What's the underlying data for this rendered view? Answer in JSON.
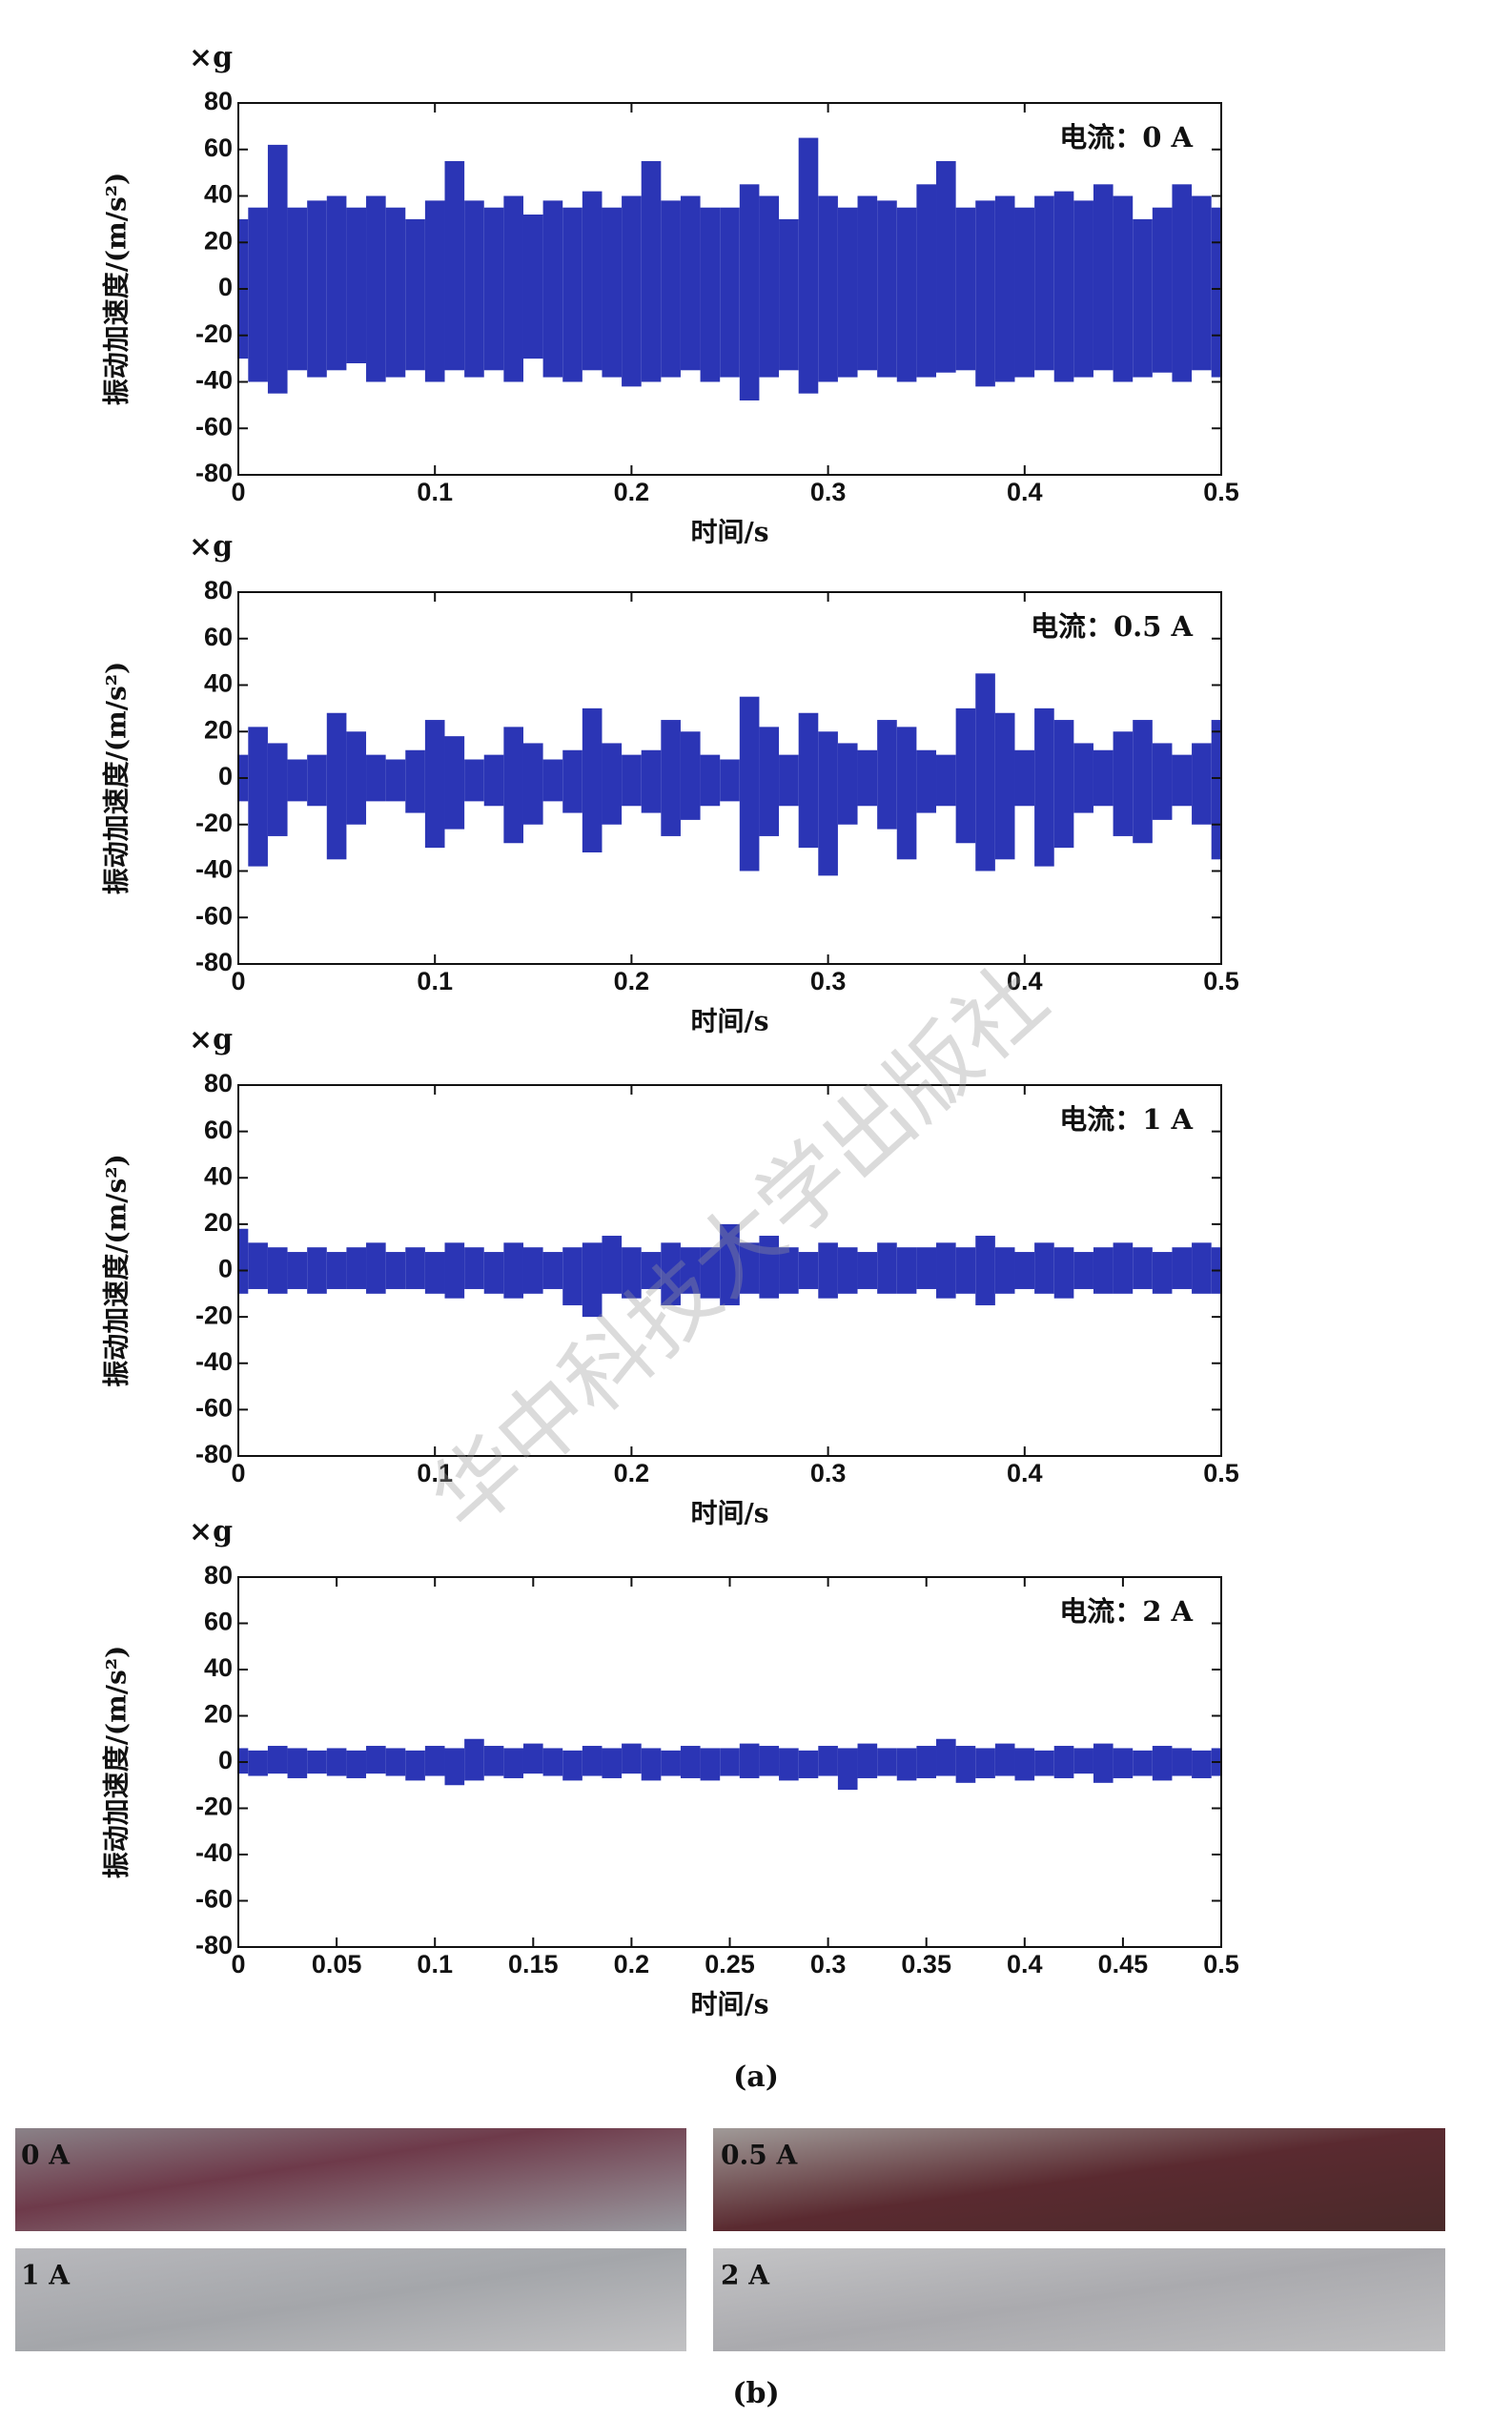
{
  "chart_data": [
    {
      "type": "signal",
      "unit_label": "×g",
      "ylabel": "振动加速度/(m/s²)",
      "xlabel": "时间/s",
      "annotation": "电流：0 A",
      "color": "#2b35b5",
      "xlim": [
        0,
        0.5
      ],
      "ylim": [
        -80,
        80
      ],
      "xticks": [
        0,
        0.1,
        0.2,
        0.3,
        0.4,
        0.5
      ],
      "yticks": [
        80,
        60,
        40,
        20,
        0,
        -20,
        -40,
        -60,
        -80
      ],
      "x": [
        0,
        0.01,
        0.02,
        0.03,
        0.04,
        0.05,
        0.06,
        0.07,
        0.08,
        0.09,
        0.1,
        0.11,
        0.12,
        0.13,
        0.14,
        0.15,
        0.16,
        0.17,
        0.18,
        0.19,
        0.2,
        0.21,
        0.22,
        0.23,
        0.24,
        0.25,
        0.26,
        0.27,
        0.28,
        0.29,
        0.3,
        0.31,
        0.32,
        0.33,
        0.34,
        0.35,
        0.36,
        0.37,
        0.38,
        0.39,
        0.4,
        0.41,
        0.42,
        0.43,
        0.44,
        0.45,
        0.46,
        0.47,
        0.48,
        0.49,
        0.5
      ],
      "upper": [
        30,
        35,
        62,
        35,
        38,
        40,
        35,
        40,
        35,
        30,
        38,
        55,
        38,
        35,
        40,
        32,
        38,
        35,
        42,
        35,
        40,
        55,
        38,
        40,
        35,
        35,
        45,
        40,
        30,
        65,
        40,
        35,
        40,
        38,
        35,
        45,
        55,
        35,
        38,
        40,
        35,
        40,
        42,
        38,
        45,
        40,
        30,
        35,
        45,
        40,
        35
      ],
      "lower": [
        -30,
        -40,
        -45,
        -35,
        -38,
        -35,
        -32,
        -40,
        -38,
        -35,
        -40,
        -35,
        -38,
        -35,
        -40,
        -30,
        -38,
        -40,
        -35,
        -38,
        -42,
        -40,
        -38,
        -35,
        -40,
        -38,
        -48,
        -38,
        -35,
        -45,
        -40,
        -38,
        -35,
        -38,
        -40,
        -38,
        -36,
        -35,
        -42,
        -40,
        -38,
        -35,
        -40,
        -38,
        -35,
        -40,
        -38,
        -36,
        -40,
        -35,
        -38
      ]
    },
    {
      "type": "signal",
      "unit_label": "×g",
      "ylabel": "振动加速度/(m/s²)",
      "xlabel": "时间/s",
      "annotation": "电流：0.5 A",
      "color": "#2b35b5",
      "xlim": [
        0,
        0.5
      ],
      "ylim": [
        -80,
        80
      ],
      "xticks": [
        0,
        0.1,
        0.2,
        0.3,
        0.4,
        0.5
      ],
      "yticks": [
        80,
        60,
        40,
        20,
        0,
        -20,
        -40,
        -60,
        -80
      ],
      "x": [
        0,
        0.01,
        0.02,
        0.03,
        0.04,
        0.05,
        0.06,
        0.07,
        0.08,
        0.09,
        0.1,
        0.11,
        0.12,
        0.13,
        0.14,
        0.15,
        0.16,
        0.17,
        0.18,
        0.19,
        0.2,
        0.21,
        0.22,
        0.23,
        0.24,
        0.25,
        0.26,
        0.27,
        0.28,
        0.29,
        0.3,
        0.31,
        0.32,
        0.33,
        0.34,
        0.35,
        0.36,
        0.37,
        0.38,
        0.39,
        0.4,
        0.41,
        0.42,
        0.43,
        0.44,
        0.45,
        0.46,
        0.47,
        0.48,
        0.49,
        0.5
      ],
      "upper": [
        10,
        22,
        15,
        8,
        10,
        28,
        20,
        10,
        8,
        12,
        25,
        18,
        8,
        10,
        22,
        15,
        8,
        12,
        30,
        15,
        10,
        12,
        25,
        20,
        10,
        8,
        35,
        22,
        10,
        28,
        20,
        15,
        12,
        25,
        22,
        12,
        10,
        30,
        45,
        28,
        12,
        30,
        25,
        15,
        12,
        20,
        25,
        15,
        10,
        15,
        25
      ],
      "lower": [
        -10,
        -38,
        -25,
        -10,
        -12,
        -35,
        -20,
        -10,
        -10,
        -15,
        -30,
        -22,
        -10,
        -12,
        -28,
        -20,
        -10,
        -15,
        -32,
        -20,
        -12,
        -15,
        -25,
        -18,
        -12,
        -10,
        -40,
        -25,
        -12,
        -30,
        -42,
        -20,
        -12,
        -22,
        -35,
        -15,
        -12,
        -28,
        -40,
        -35,
        -12,
        -38,
        -30,
        -15,
        -12,
        -25,
        -28,
        -18,
        -12,
        -20,
        -35
      ]
    },
    {
      "type": "signal",
      "unit_label": "×g",
      "ylabel": "振动加速度/(m/s²)",
      "xlabel": "时间/s",
      "annotation": "电流：1 A",
      "color": "#2b35b5",
      "xlim": [
        0,
        0.5
      ],
      "ylim": [
        -80,
        80
      ],
      "xticks": [
        0,
        0.1,
        0.2,
        0.3,
        0.4,
        0.5
      ],
      "yticks": [
        80,
        60,
        40,
        20,
        0,
        -20,
        -40,
        -60,
        -80
      ],
      "x": [
        0,
        0.01,
        0.02,
        0.03,
        0.04,
        0.05,
        0.06,
        0.07,
        0.08,
        0.09,
        0.1,
        0.11,
        0.12,
        0.13,
        0.14,
        0.15,
        0.16,
        0.17,
        0.18,
        0.19,
        0.2,
        0.21,
        0.22,
        0.23,
        0.24,
        0.25,
        0.26,
        0.27,
        0.28,
        0.29,
        0.3,
        0.31,
        0.32,
        0.33,
        0.34,
        0.35,
        0.36,
        0.37,
        0.38,
        0.39,
        0.4,
        0.41,
        0.42,
        0.43,
        0.44,
        0.45,
        0.46,
        0.47,
        0.48,
        0.49,
        0.5
      ],
      "upper": [
        18,
        12,
        10,
        8,
        10,
        8,
        10,
        12,
        8,
        10,
        8,
        12,
        10,
        8,
        12,
        10,
        8,
        10,
        12,
        15,
        10,
        8,
        12,
        10,
        10,
        20,
        12,
        15,
        10,
        8,
        12,
        10,
        8,
        12,
        10,
        10,
        12,
        10,
        15,
        10,
        8,
        12,
        10,
        8,
        10,
        12,
        10,
        8,
        10,
        12,
        10
      ],
      "lower": [
        -10,
        -8,
        -10,
        -8,
        -10,
        -8,
        -8,
        -10,
        -8,
        -8,
        -10,
        -12,
        -8,
        -10,
        -12,
        -10,
        -8,
        -15,
        -20,
        -10,
        -12,
        -8,
        -15,
        -10,
        -12,
        -15,
        -10,
        -12,
        -10,
        -8,
        -12,
        -10,
        -8,
        -10,
        -10,
        -8,
        -12,
        -10,
        -15,
        -10,
        -8,
        -10,
        -12,
        -8,
        -10,
        -10,
        -8,
        -10,
        -8,
        -10,
        -10
      ]
    },
    {
      "type": "signal",
      "unit_label": "×g",
      "ylabel": "振动加速度/(m/s²)",
      "xlabel": "时间/s",
      "annotation": "电流：2 A",
      "color": "#2b35b5",
      "xlim": [
        0,
        0.5
      ],
      "ylim": [
        -80,
        80
      ],
      "xticks": [
        0,
        0.05,
        0.1,
        0.15,
        0.2,
        0.25,
        0.3,
        0.35,
        0.4,
        0.45,
        0.5
      ],
      "yticks": [
        80,
        60,
        40,
        20,
        0,
        -20,
        -40,
        -60,
        -80
      ],
      "x": [
        0,
        0.01,
        0.02,
        0.03,
        0.04,
        0.05,
        0.06,
        0.07,
        0.08,
        0.09,
        0.1,
        0.11,
        0.12,
        0.13,
        0.14,
        0.15,
        0.16,
        0.17,
        0.18,
        0.19,
        0.2,
        0.21,
        0.22,
        0.23,
        0.24,
        0.25,
        0.26,
        0.27,
        0.28,
        0.29,
        0.3,
        0.31,
        0.32,
        0.33,
        0.34,
        0.35,
        0.36,
        0.37,
        0.38,
        0.39,
        0.4,
        0.41,
        0.42,
        0.43,
        0.44,
        0.45,
        0.46,
        0.47,
        0.48,
        0.49,
        0.5
      ],
      "upper": [
        6,
        5,
        7,
        6,
        5,
        6,
        5,
        7,
        6,
        5,
        7,
        6,
        10,
        7,
        6,
        8,
        6,
        5,
        7,
        6,
        8,
        6,
        5,
        7,
        6,
        6,
        8,
        7,
        6,
        5,
        7,
        6,
        8,
        6,
        6,
        7,
        10,
        7,
        6,
        8,
        6,
        5,
        7,
        6,
        8,
        6,
        5,
        7,
        6,
        5,
        6
      ],
      "lower": [
        -5,
        -6,
        -5,
        -7,
        -5,
        -6,
        -7,
        -5,
        -6,
        -8,
        -6,
        -10,
        -8,
        -6,
        -7,
        -5,
        -6,
        -8,
        -6,
        -7,
        -5,
        -8,
        -6,
        -7,
        -8,
        -6,
        -7,
        -6,
        -8,
        -7,
        -6,
        -12,
        -7,
        -6,
        -8,
        -7,
        -6,
        -9,
        -7,
        -6,
        -8,
        -6,
        -7,
        -5,
        -9,
        -7,
        -6,
        -8,
        -6,
        -7,
        -6
      ]
    }
  ],
  "panel_a_caption": "(a)",
  "watermark": "华中科技大学出版社",
  "panel_b": {
    "photos": [
      {
        "label": "0 A"
      },
      {
        "label": "0.5 A"
      },
      {
        "label": "1 A"
      },
      {
        "label": "2 A"
      }
    ],
    "caption": "(b)"
  }
}
